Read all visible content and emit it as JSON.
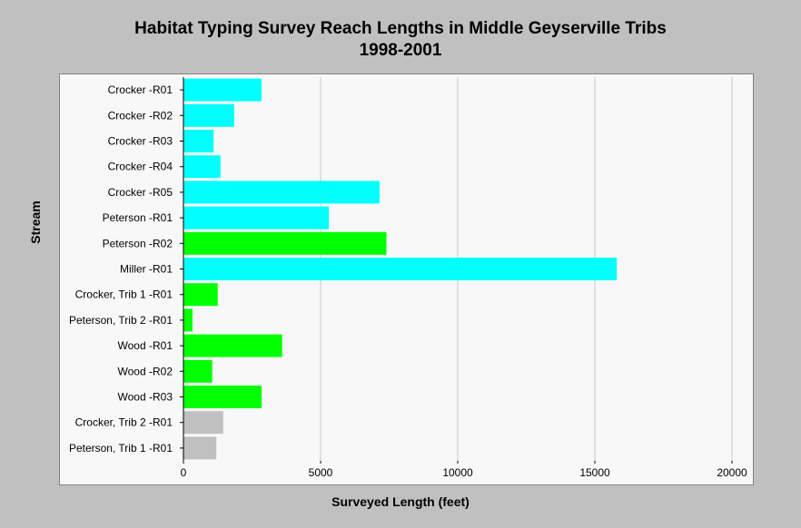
{
  "chart_data": {
    "type": "bar",
    "orientation": "horizontal",
    "title_lines": [
      "Habitat Typing Survey Reach Lengths in Middle Geyserville Tribs",
      "1998-2001"
    ],
    "xlabel": "Surveyed Length (feet)",
    "ylabel": "Stream",
    "xlim": [
      0,
      20000
    ],
    "xticks": [
      0,
      5000,
      10000,
      15000,
      20000
    ],
    "grid": true,
    "categories": [
      "Crocker -R01",
      "Crocker -R02",
      "Crocker -R03",
      "Crocker -R04",
      "Crocker -R05",
      "Peterson -R01",
      "Peterson -R02",
      "Miller -R01",
      "Crocker, Trib 1 -R01",
      "Peterson, Trib 2 -R01",
      "Wood -R01",
      "Wood -R02",
      "Wood -R03",
      "Crocker, Trib 2 -R01",
      "Peterson, Trib 1 -R01"
    ],
    "values": [
      2850,
      1850,
      1100,
      1350,
      7150,
      5300,
      7400,
      15800,
      1250,
      330,
      3600,
      1050,
      2850,
      1450,
      1200
    ],
    "bar_colors": [
      "#00ffff",
      "#00ffff",
      "#00ffff",
      "#00ffff",
      "#00ffff",
      "#00ffff",
      "#00ff00",
      "#00ffff",
      "#00ff00",
      "#00ff00",
      "#00ff00",
      "#00ff00",
      "#00ff00",
      "#c0c0c0",
      "#c0c0c0"
    ]
  }
}
